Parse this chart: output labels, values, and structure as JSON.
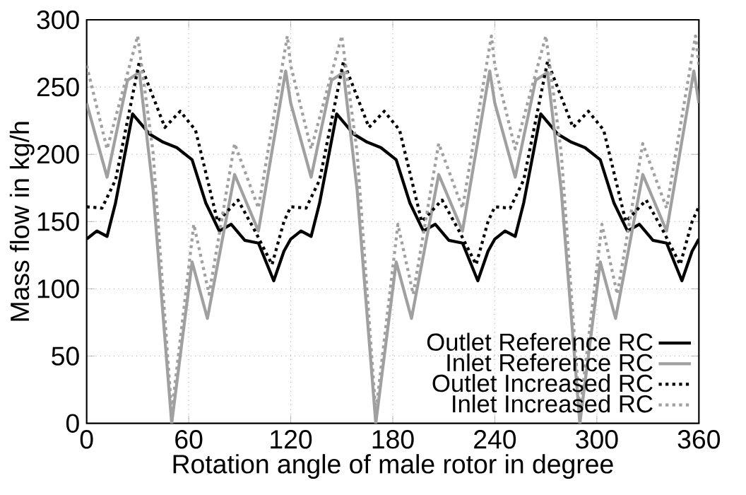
{
  "chart_data": {
    "type": "line",
    "xlabel": "Rotation angle of male rotor in degree",
    "ylabel": "Mass flow in kg/h",
    "xlim": [
      0,
      360
    ],
    "ylim": [
      0,
      300
    ],
    "xticks": [
      0,
      60,
      120,
      180,
      240,
      300,
      360
    ],
    "yticks": [
      0,
      50,
      100,
      150,
      200,
      250,
      300
    ],
    "grid": true,
    "legend": "bottom right",
    "marker": "none",
    "series": [
      {
        "name": "Outlet Reference RC",
        "color": "#000000",
        "line_style": "solid",
        "x": [
          0,
          6,
          12,
          17,
          27,
          37,
          45,
          53,
          62,
          70,
          78,
          85,
          93,
          101,
          110,
          116,
          120,
          126,
          132,
          137,
          147,
          157,
          165,
          173,
          182,
          190,
          198,
          205,
          213,
          221,
          230,
          236,
          240,
          246,
          252,
          257,
          267,
          277,
          285,
          293,
          302,
          310,
          318,
          325,
          333,
          341,
          350,
          356,
          360
        ],
        "values": [
          137,
          143,
          139,
          164,
          230,
          215,
          209,
          205,
          196,
          164,
          143,
          148,
          136,
          134,
          106,
          128,
          137,
          143,
          139,
          164,
          230,
          215,
          209,
          205,
          196,
          164,
          143,
          148,
          136,
          134,
          106,
          128,
          137,
          143,
          139,
          164,
          230,
          215,
          209,
          205,
          196,
          164,
          143,
          148,
          136,
          134,
          106,
          128,
          137
        ]
      },
      {
        "name": "Inlet Reference RC",
        "color": "#a0a0a0",
        "line_style": "solid",
        "x": [
          0,
          12,
          24,
          31,
          39,
          50,
          62,
          71,
          87,
          101,
          117,
          120,
          132,
          144,
          151,
          159,
          170,
          182,
          191,
          207,
          221,
          237,
          240,
          252,
          264,
          271,
          279,
          290,
          302,
          311,
          327,
          341,
          357,
          360
        ],
        "values": [
          238,
          183,
          255,
          261,
          174,
          0,
          120,
          78,
          185,
          143,
          262,
          238,
          183,
          255,
          261,
          174,
          0,
          120,
          78,
          185,
          143,
          262,
          238,
          183,
          255,
          261,
          174,
          0,
          120,
          78,
          185,
          143,
          262,
          238
        ]
      },
      {
        "name": "Outlet Increased RC",
        "color": "#000000",
        "line_style": "dotted",
        "x": [
          0,
          9,
          17,
          31,
          46,
          55,
          64,
          77,
          89,
          99,
          109,
          116,
          120,
          129,
          137,
          151,
          166,
          175,
          184,
          197,
          209,
          219,
          229,
          236,
          240,
          249,
          257,
          271,
          286,
          295,
          304,
          317,
          329,
          339,
          349,
          356,
          360
        ],
        "values": [
          161,
          160,
          181,
          269,
          220,
          232,
          218,
          150,
          166,
          143,
          118,
          150,
          161,
          160,
          181,
          269,
          220,
          232,
          218,
          150,
          166,
          143,
          118,
          150,
          161,
          160,
          181,
          269,
          220,
          232,
          218,
          150,
          166,
          143,
          118,
          150,
          161
        ]
      },
      {
        "name": "Inlet Increased RC",
        "color": "#a0a0a0",
        "line_style": "dotted",
        "x": [
          0,
          12,
          30,
          39,
          50,
          63,
          72,
          87,
          101,
          118,
          120,
          132,
          150,
          159,
          170,
          183,
          192,
          207,
          221,
          238,
          240,
          252,
          270,
          279,
          290,
          303,
          312,
          327,
          341,
          358,
          360
        ],
        "values": [
          266,
          204,
          288,
          202,
          8,
          148,
          96,
          208,
          160,
          288,
          266,
          204,
          288,
          202,
          8,
          148,
          96,
          208,
          160,
          288,
          266,
          204,
          288,
          202,
          8,
          148,
          96,
          208,
          160,
          288,
          266
        ]
      }
    ]
  }
}
